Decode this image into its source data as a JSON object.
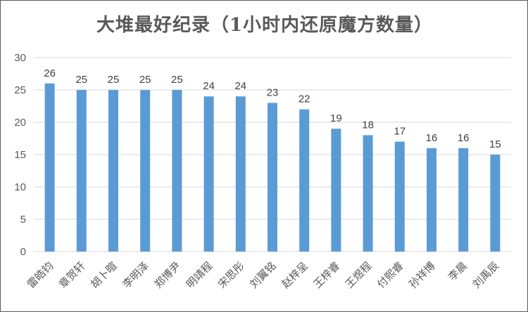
{
  "chart_data": {
    "type": "bar",
    "title": "大堆最好纪录（1小时内还原魔方数量）",
    "xlabel": "",
    "ylabel": "",
    "ylim": [
      0,
      30
    ],
    "yticks": [
      0,
      5,
      10,
      15,
      20,
      25,
      30
    ],
    "categories": [
      "雷皓钧",
      "章贺轩",
      "胡卜暄",
      "李明泽",
      "郑博尹",
      "明靖程",
      "宋思彤",
      "刘翼铭",
      "赵梓呈",
      "王梓睿",
      "王煜程",
      "付熙睿",
      "孙祥博",
      "李晨",
      "刘禹辰"
    ],
    "values": [
      26,
      25,
      25,
      25,
      25,
      24,
      24,
      23,
      22,
      19,
      18,
      17,
      16,
      16,
      15
    ],
    "grid": true,
    "legend": "none",
    "colors": {
      "bar": "#5b9bd5",
      "grid": "#d9d9d9",
      "axis_text": "#595959",
      "title": "#595959"
    }
  }
}
